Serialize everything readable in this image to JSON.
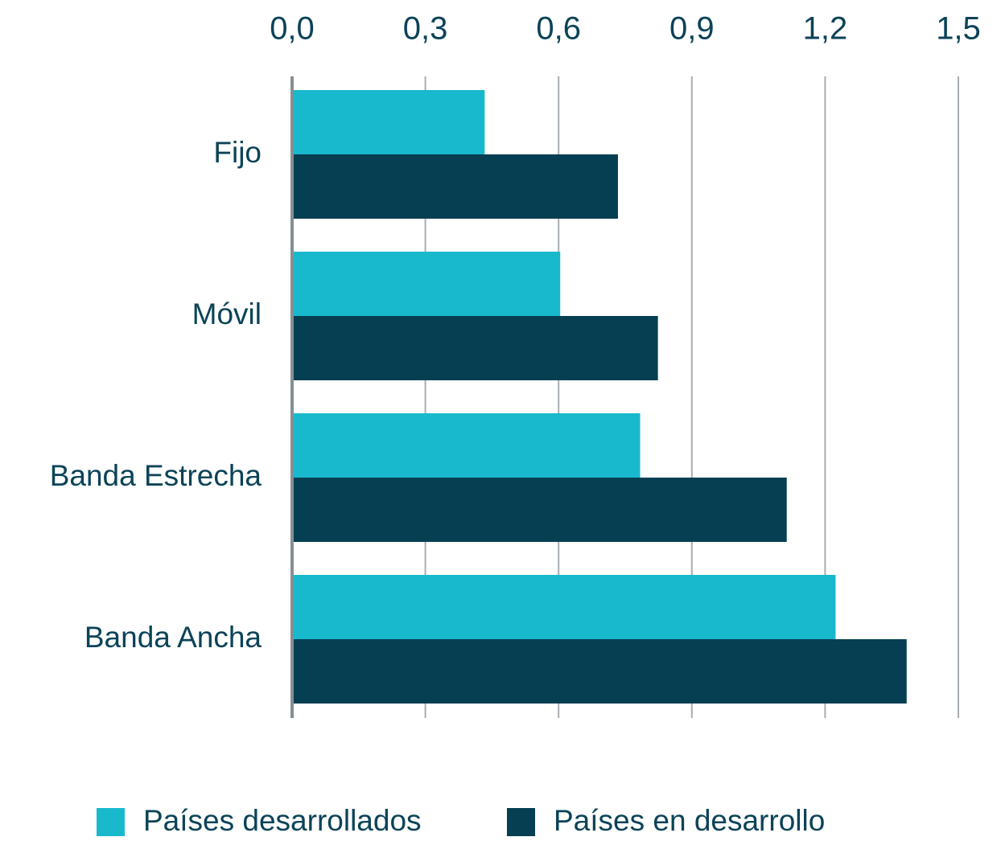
{
  "chart_data": {
    "type": "bar",
    "orientation": "horizontal",
    "categories": [
      "Fijo",
      "Móvil",
      "Banda Estrecha",
      "Banda Ancha"
    ],
    "series": [
      {
        "name": "Países desarrollados",
        "color": "#19b9cd",
        "values": [
          0.43,
          0.6,
          0.78,
          1.22
        ]
      },
      {
        "name": "Países en desarrollo",
        "color": "#063f52",
        "values": [
          0.73,
          0.82,
          1.11,
          1.38
        ]
      }
    ],
    "xlim": [
      0,
      1.5
    ],
    "xticks": [
      {
        "value": 0,
        "label": "0,0"
      },
      {
        "value": 0.3,
        "label": "0,3"
      },
      {
        "value": 0.6,
        "label": "0,6"
      },
      {
        "value": 0.9,
        "label": "0,9"
      },
      {
        "value": 1.2,
        "label": "1,2"
      },
      {
        "value": 1.5,
        "label": "1,5"
      }
    ],
    "grid": true,
    "legend": "bottom"
  }
}
